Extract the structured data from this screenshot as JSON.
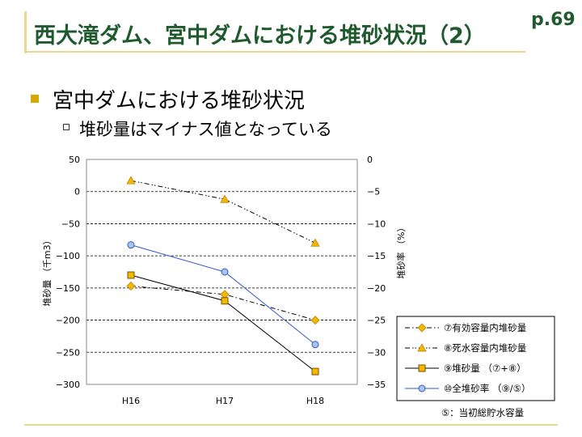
{
  "slide": {
    "title": "西大滝ダム、宮中ダムにおける堆砂状況（2）",
    "page_number": "p.69",
    "bullet_1": "宮中ダムにおける堆砂状況",
    "bullet_2": "堆砂量はマイナス値となっている"
  },
  "colors": {
    "title": "#1f5a2e",
    "accent_line": "#e8d890",
    "bullet": "#d4a800",
    "marker_orange": "#f5b800",
    "marker_blue": "#a8c4f0",
    "line_blue": "#3355cc"
  },
  "chart_data": {
    "type": "line",
    "categories": [
      "H16",
      "H17",
      "H18"
    ],
    "ylabel": "堆砂量 （千m3）",
    "y2label": "堆砂率 （%）",
    "ylim": [
      -300,
      50
    ],
    "y2lim": [
      -35,
      0
    ],
    "yticks": [
      "50",
      "0",
      "−50",
      "−100",
      "−150",
      "−200",
      "−250",
      "−300"
    ],
    "y2ticks": [
      "0",
      "−5",
      "−10",
      "−15",
      "−20",
      "−25",
      "−30",
      "−35"
    ],
    "grid": true,
    "legend_position": "bottom-right",
    "series": [
      {
        "name": "⑦有効容量内堆砂量",
        "axis": "left",
        "values": [
          -147,
          -160,
          -200
        ],
        "marker": "diamond",
        "line": "dashdot"
      },
      {
        "name": "⑧死水容量内堆砂量",
        "axis": "left",
        "values": [
          17,
          -12,
          -80
        ],
        "marker": "triangle",
        "line": "dashdotdot"
      },
      {
        "name": "⑨堆砂量 （⑦+⑧）",
        "axis": "left",
        "values": [
          -130,
          -170,
          -280
        ],
        "marker": "square",
        "line": "solid"
      },
      {
        "name": "⑩全堆砂率 （⑨/⑤）",
        "axis": "right",
        "values": [
          -13.3,
          -17.5,
          -28.8
        ],
        "marker": "circle",
        "line": "solid-blue"
      }
    ],
    "footnote": "⑤：当初総貯水容量"
  }
}
